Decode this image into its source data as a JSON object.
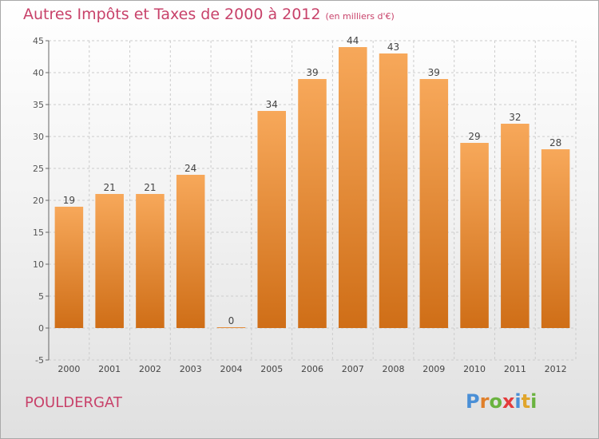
{
  "title": "Autres Impôts et Taxes de 2000 à 2012",
  "subtitle": "(en milliers d'€)",
  "commune": "POULDERGAT",
  "logo": {
    "letters": [
      {
        "char": "P",
        "color": "#4a8fd6"
      },
      {
        "char": "r",
        "color": "#e0802b"
      },
      {
        "char": "o",
        "color": "#6ab33f"
      },
      {
        "char": "x",
        "color": "#e43b3b"
      },
      {
        "char": "i",
        "color": "#4a8fd6"
      },
      {
        "char": "t",
        "color": "#e0a52b"
      },
      {
        "char": "i",
        "color": "#6ab33f"
      }
    ]
  },
  "colors": {
    "title": "#c8426a",
    "bar_top": "#f7a85a",
    "bar_bottom": "#cf6e17",
    "grid": "#cccccc",
    "axis": "#666666"
  },
  "chart_data": {
    "type": "bar",
    "categories": [
      "2000",
      "2001",
      "2002",
      "2003",
      "2004",
      "2005",
      "2006",
      "2007",
      "2008",
      "2009",
      "2010",
      "2011",
      "2012"
    ],
    "values": [
      19,
      21,
      21,
      24,
      0,
      34,
      39,
      44,
      43,
      39,
      29,
      32,
      28
    ],
    "data_labels": [
      "19",
      "21",
      "21",
      "24",
      "0",
      "34",
      "39",
      "44",
      "43",
      "39",
      "29",
      "32",
      "28"
    ],
    "ylim": [
      -5,
      45
    ],
    "yticks": [
      -5,
      0,
      5,
      10,
      15,
      20,
      25,
      30,
      35,
      40,
      45
    ],
    "grid": true,
    "xlabel": "",
    "ylabel": ""
  }
}
